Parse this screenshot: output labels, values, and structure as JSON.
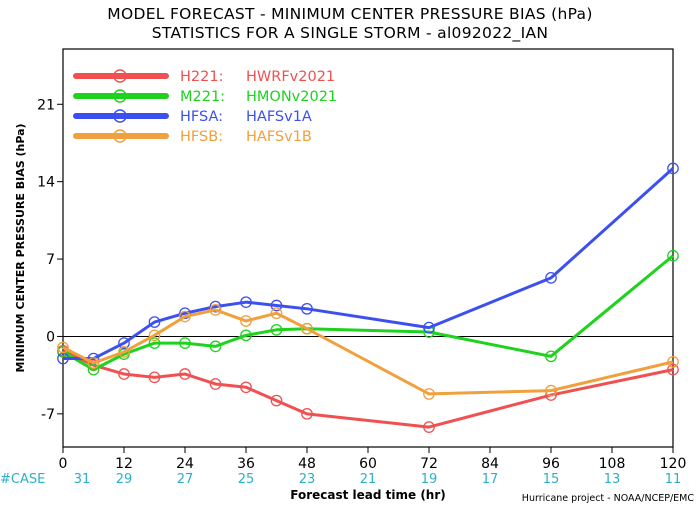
{
  "chart_data": {
    "type": "line",
    "title": "MODEL FORECAST - MINIMUM CENTER PRESSURE BIAS (hPa)",
    "subtitle": "STATISTICS FOR A SINGLE STORM - al092022_IAN",
    "xlabel": "Forecast lead time (hr)",
    "ylabel": "MINIMUM CENTER PRESSURE BIAS (hPa)",
    "xlim": [
      0,
      120
    ],
    "ylim": [
      -10,
      26
    ],
    "xticks": [
      0,
      12,
      24,
      36,
      48,
      60,
      72,
      84,
      96,
      108,
      120
    ],
    "yticks": [
      -7,
      0,
      7,
      14,
      21
    ],
    "legend_position": "top-left",
    "case_label": "#CASE",
    "case_counts": [
      31,
      29,
      27,
      25,
      23,
      21,
      19,
      17,
      15,
      13,
      11
    ],
    "credit": "Hurricane project - NOAA/NCEP/EMC",
    "series": [
      {
        "code": "H221:",
        "name": "HWRFv2021",
        "color": "#f05050",
        "x": [
          0,
          6,
          12,
          18,
          24,
          30,
          36,
          42,
          48,
          72,
          96,
          120
        ],
        "values": [
          -1.3,
          -2.6,
          -3.4,
          -3.7,
          -3.4,
          -4.3,
          -4.6,
          -5.8,
          -7.0,
          -8.2,
          -5.3,
          -3.0
        ]
      },
      {
        "code": "M221:",
        "name": "HMONv2021",
        "color": "#1ed21e",
        "x": [
          0,
          6,
          12,
          18,
          24,
          30,
          36,
          42,
          48,
          72,
          96,
          120
        ],
        "values": [
          -1.4,
          -3.0,
          -1.6,
          -0.6,
          -0.6,
          -0.9,
          0.1,
          0.6,
          0.7,
          0.4,
          -1.8,
          7.3
        ]
      },
      {
        "code": "HFSA:",
        "name": "HAFSv1A",
        "color": "#3c50f0",
        "x": [
          0,
          6,
          12,
          18,
          24,
          30,
          36,
          42,
          48,
          72,
          96,
          120
        ],
        "values": [
          -2.0,
          -2.0,
          -0.6,
          1.3,
          2.1,
          2.7,
          3.1,
          2.8,
          2.5,
          0.8,
          5.3,
          15.2
        ]
      },
      {
        "code": "HFSB:",
        "name": "HAFSv1B",
        "color": "#f0a03c",
        "x": [
          0,
          6,
          12,
          18,
          24,
          30,
          36,
          42,
          48,
          72,
          96,
          120
        ],
        "values": [
          -1.0,
          -2.4,
          -1.4,
          0.1,
          1.8,
          2.4,
          1.4,
          2.1,
          0.7,
          -5.2,
          -4.9,
          -2.3
        ]
      }
    ]
  }
}
